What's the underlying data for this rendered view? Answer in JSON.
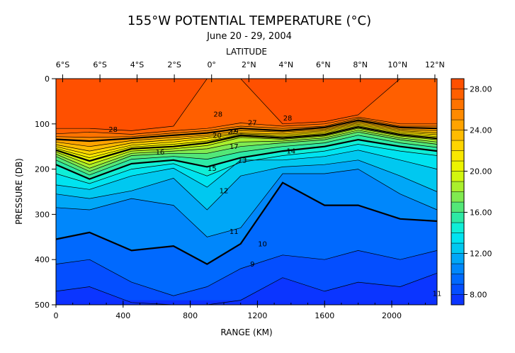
{
  "chart_data": {
    "type": "heatmap",
    "title": "155°W POTENTIAL TEMPERATURE (°C)",
    "subtitle": "June 20 - 29, 2004",
    "xlabel": "RANGE (KM)",
    "ylabel": "PRESSURE (DB)",
    "top_axis_label": "LATITUDE",
    "xlim": [
      0,
      2270
    ],
    "ylim": [
      0,
      500
    ],
    "x_ticks": [
      0,
      400,
      800,
      1200,
      1600,
      2000
    ],
    "x_tick_labels": [
      "0",
      "400",
      "800",
      "1200",
      "1600",
      "2000"
    ],
    "y_ticks": [
      0,
      100,
      200,
      300,
      400,
      500
    ],
    "y_tick_labels": [
      "0",
      "100",
      "200",
      "300",
      "400",
      "500"
    ],
    "top_ticks_km": [
      40,
      262,
      483,
      705,
      927,
      1149,
      1370,
      1592,
      1813,
      2035,
      2257
    ],
    "top_tick_labels": [
      "6°S",
      "6°S",
      "4°S",
      "2°S",
      "0°",
      "2°N",
      "4°N",
      "6°N",
      "8°N",
      "10°N",
      "12°N"
    ],
    "colorbar": {
      "min": 7,
      "max": 29,
      "ticks": [
        8,
        12,
        16,
        20,
        24,
        28
      ],
      "tick_labels": [
        "8.00",
        "12.00",
        "16.00",
        "20.00",
        "24.00",
        "28.00"
      ]
    },
    "contour_labels": [
      {
        "text": "28",
        "x": 340,
        "p": 112
      },
      {
        "text": "28",
        "x": 965,
        "p": 78
      },
      {
        "text": "28",
        "x": 1380,
        "p": 87
      },
      {
        "text": "27",
        "x": 1170,
        "p": 97
      },
      {
        "text": "22",
        "x": 1050,
        "p": 117
      },
      {
        "text": "20",
        "x": 960,
        "p": 125
      },
      {
        "text": "19",
        "x": 1060,
        "p": 117
      },
      {
        "text": "17",
        "x": 1060,
        "p": 150
      },
      {
        "text": "16",
        "x": 620,
        "p": 162
      },
      {
        "text": "15",
        "x": 930,
        "p": 198
      },
      {
        "text": "14",
        "x": 1400,
        "p": 160
      },
      {
        "text": "13",
        "x": 1110,
        "p": 180
      },
      {
        "text": "12",
        "x": 1000,
        "p": 248
      },
      {
        "text": "11",
        "x": 1060,
        "p": 338
      },
      {
        "text": "10",
        "x": 1230,
        "p": 365
      },
      {
        "text": "9",
        "x": 1170,
        "p": 410
      },
      {
        "text": "11",
        "x": 2270,
        "p": 475
      }
    ],
    "contours": [
      {
        "level": 28,
        "depths": [
          110,
          110,
          115,
          105,
          0,
          0,
          100,
          95,
          80,
          0,
          0
        ]
      },
      {
        "level": 27,
        "depths": [
          122,
          118,
          123,
          115,
          110,
          98,
          105,
          100,
          85,
          100,
          100
        ]
      },
      {
        "level": 26,
        "depths": [
          128,
          130,
          128,
          120,
          115,
          105,
          110,
          105,
          88,
          105,
          105
        ]
      },
      {
        "level": 25,
        "depths": [
          134,
          138,
          132,
          125,
          120,
          110,
          115,
          108,
          92,
          108,
          110
        ]
      },
      {
        "level": 24,
        "depths": [
          140,
          150,
          137,
          130,
          125,
          115,
          118,
          112,
          95,
          112,
          115
        ]
      },
      {
        "level": 23,
        "depths": [
          146,
          160,
          142,
          135,
          128,
          120,
          122,
          115,
          98,
          115,
          120
        ]
      },
      {
        "level": 22,
        "depths": [
          150,
          168,
          147,
          140,
          132,
          122,
          125,
          118,
          101,
          118,
          124
        ]
      },
      {
        "level": 21,
        "depths": [
          154,
          175,
          151,
          145,
          138,
          124,
          128,
          121,
          104,
          121,
          128
        ]
      },
      {
        "level": 20,
        "depths": [
          158,
          182,
          155,
          150,
          142,
          126,
          131,
          124,
          107,
          124,
          132
        ]
      },
      {
        "level": 19,
        "depths": [
          162,
          190,
          160,
          155,
          148,
          130,
          134,
          127,
          110,
          127,
          135
        ]
      },
      {
        "level": 18,
        "depths": [
          167,
          198,
          165,
          160,
          155,
          140,
          138,
          131,
          114,
          131,
          140
        ]
      },
      {
        "level": 17,
        "depths": [
          172,
          205,
          170,
          165,
          165,
          150,
          142,
          135,
          118,
          135,
          145
        ]
      },
      {
        "level": 16,
        "depths": [
          180,
          213,
          178,
          172,
          178,
          162,
          150,
          142,
          125,
          142,
          152
        ]
      },
      {
        "level": 15,
        "depths": [
          190,
          222,
          188,
          180,
          195,
          175,
          160,
          150,
          135,
          150,
          160
        ]
      },
      {
        "level": 14,
        "depths": [
          210,
          232,
          200,
          188,
          215,
          185,
          170,
          160,
          145,
          160,
          170
        ]
      },
      {
        "level": 13,
        "depths": [
          235,
          245,
          215,
          198,
          240,
          180,
          180,
          172,
          158,
          180,
          200
        ]
      },
      {
        "level": 12,
        "depths": [
          255,
          265,
          248,
          220,
          290,
          215,
          195,
          190,
          180,
          215,
          250
        ]
      },
      {
        "level": 11,
        "depths": [
          285,
          290,
          265,
          280,
          350,
          330,
          210,
          210,
          200,
          255,
          290
        ]
      },
      {
        "level": 10,
        "depths": [
          355,
          340,
          380,
          370,
          410,
          365,
          230,
          280,
          280,
          310,
          315
        ]
      },
      {
        "level": 9,
        "depths": [
          410,
          400,
          450,
          480,
          460,
          420,
          390,
          400,
          380,
          400,
          380
        ]
      },
      {
        "level": 8,
        "depths": [
          470,
          460,
          495,
          500,
          500,
          490,
          440,
          470,
          450,
          460,
          430
        ]
      }
    ],
    "contour_x_km": [
      0,
      200,
      450,
      700,
      900,
      1100,
      1350,
      1600,
      1800,
      2050,
      2270
    ]
  }
}
